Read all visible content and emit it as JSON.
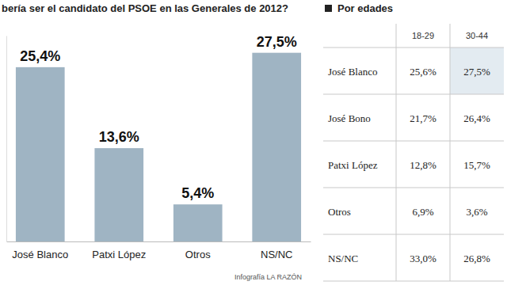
{
  "chart_data": {
    "type": "bar",
    "title": "bería ser el candidato del PSOE en las Generales de 2012?",
    "categories": [
      "José Blanco",
      "Patxi López",
      "Otros",
      "NS/NC"
    ],
    "values": [
      25.4,
      13.6,
      5.4,
      27.5
    ],
    "value_labels": [
      "25,4%",
      "13,6%",
      "5,4%",
      "27,5%"
    ],
    "color": "#9fb4c3",
    "ylim": [
      0,
      30
    ],
    "tick_labels": "x",
    "data_labels": true,
    "credit": "Infografía LA RAZÓN"
  },
  "table": {
    "title": "Por edades",
    "columns": [
      "18-29",
      "30-44"
    ],
    "rows": [
      [
        "José Blanco",
        "25,6%",
        "27,5%"
      ],
      [
        "José Bono",
        "21,7%",
        "26,4%"
      ],
      [
        "Patxi López",
        "12,8%",
        "15,7%"
      ],
      [
        "Otros",
        "6,9%",
        "3,6%"
      ],
      [
        "NS/NC",
        "33,0%",
        "26,8%"
      ]
    ]
  }
}
